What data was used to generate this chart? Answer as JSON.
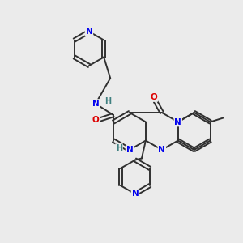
{
  "bg_color": "#ebebeb",
  "bond_color": "#303030",
  "N_color": "#0000ee",
  "O_color": "#dd0000",
  "H_color": "#408080",
  "line_width": 1.4,
  "font_size": 7.5
}
